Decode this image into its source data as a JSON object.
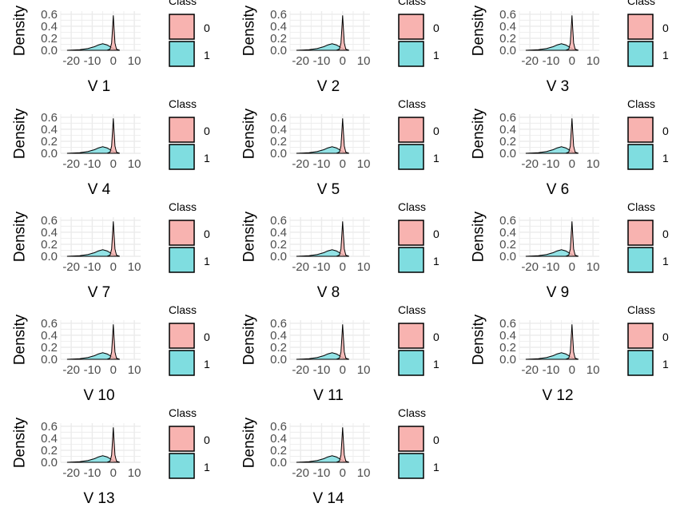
{
  "colors": {
    "class0": "#f8b3b0",
    "class1": "#7fdde0",
    "grid": "#ebebeb",
    "outline": "#000000",
    "tick": "#4d4d4d"
  },
  "axis": {
    "ylabel": "Density",
    "xticks": [
      "-20",
      "-10",
      "0",
      "10"
    ],
    "yticks": [
      "0.0",
      "0.2",
      "0.4",
      "0.6"
    ]
  },
  "legend": {
    "title": "Class",
    "labels": [
      "0",
      "1"
    ]
  },
  "chart_data": [
    {
      "type": "area",
      "xlabel": "V 1",
      "ylabel": "Density",
      "xlim": [
        -25,
        13
      ],
      "ylim": [
        0,
        0.65
      ],
      "legend": "right",
      "series": [
        {
          "name": "0",
          "x": [
            -3,
            -1.5,
            -0.8,
            -0.3,
            0,
            0.3,
            0.8,
            1.5,
            3
          ],
          "y": [
            0,
            0.02,
            0.12,
            0.4,
            0.58,
            0.4,
            0.12,
            0.02,
            0
          ]
        },
        {
          "name": "1",
          "x": [
            -22,
            -16,
            -12,
            -9,
            -7,
            -5,
            -3,
            -1,
            1,
            3
          ],
          "y": [
            0,
            0.01,
            0.03,
            0.06,
            0.09,
            0.11,
            0.09,
            0.05,
            0.01,
            0
          ]
        }
      ]
    },
    {
      "type": "area",
      "xlabel": "V 2",
      "ylabel": "Density",
      "xlim": [
        -25,
        13
      ],
      "ylim": [
        0,
        0.65
      ],
      "legend": "right",
      "series": [
        {
          "name": "0",
          "x": [
            -3,
            -1.5,
            -0.8,
            -0.3,
            0,
            0.3,
            0.8,
            1.5,
            3
          ],
          "y": [
            0,
            0.02,
            0.12,
            0.4,
            0.58,
            0.4,
            0.12,
            0.02,
            0
          ]
        },
        {
          "name": "1",
          "x": [
            -22,
            -16,
            -12,
            -9,
            -7,
            -5,
            -3,
            -1,
            1,
            3
          ],
          "y": [
            0,
            0.01,
            0.03,
            0.06,
            0.09,
            0.11,
            0.09,
            0.05,
            0.01,
            0
          ]
        }
      ]
    },
    {
      "type": "area",
      "xlabel": "V 3",
      "ylabel": "Density",
      "xlim": [
        -25,
        13
      ],
      "ylim": [
        0,
        0.65
      ],
      "legend": "right",
      "series": [
        {
          "name": "0",
          "x": [
            -3,
            -1.5,
            -0.8,
            -0.3,
            0,
            0.3,
            0.8,
            1.5,
            3
          ],
          "y": [
            0,
            0.02,
            0.12,
            0.4,
            0.58,
            0.4,
            0.12,
            0.02,
            0
          ]
        },
        {
          "name": "1",
          "x": [
            -22,
            -16,
            -12,
            -9,
            -7,
            -5,
            -3,
            -1,
            1,
            3
          ],
          "y": [
            0,
            0.01,
            0.03,
            0.06,
            0.09,
            0.11,
            0.09,
            0.05,
            0.01,
            0
          ]
        }
      ]
    },
    {
      "type": "area",
      "xlabel": "V 4",
      "ylabel": "Density",
      "xlim": [
        -25,
        13
      ],
      "ylim": [
        0,
        0.65
      ],
      "legend": "right",
      "series": [
        {
          "name": "0",
          "x": [
            -3,
            -1.5,
            -0.8,
            -0.3,
            0,
            0.3,
            0.8,
            1.5,
            3
          ],
          "y": [
            0,
            0.02,
            0.12,
            0.4,
            0.58,
            0.4,
            0.12,
            0.02,
            0
          ]
        },
        {
          "name": "1",
          "x": [
            -22,
            -16,
            -12,
            -9,
            -7,
            -5,
            -3,
            -1,
            1,
            3
          ],
          "y": [
            0,
            0.01,
            0.03,
            0.06,
            0.09,
            0.11,
            0.09,
            0.05,
            0.01,
            0
          ]
        }
      ]
    },
    {
      "type": "area",
      "xlabel": "V 5",
      "ylabel": "Density",
      "xlim": [
        -25,
        13
      ],
      "ylim": [
        0,
        0.65
      ],
      "legend": "right",
      "series": [
        {
          "name": "0",
          "x": [
            -3,
            -1.5,
            -0.8,
            -0.3,
            0,
            0.3,
            0.8,
            1.5,
            3
          ],
          "y": [
            0,
            0.02,
            0.12,
            0.4,
            0.58,
            0.4,
            0.12,
            0.02,
            0
          ]
        },
        {
          "name": "1",
          "x": [
            -22,
            -16,
            -12,
            -9,
            -7,
            -5,
            -3,
            -1,
            1,
            3
          ],
          "y": [
            0,
            0.01,
            0.03,
            0.06,
            0.09,
            0.11,
            0.09,
            0.05,
            0.01,
            0
          ]
        }
      ]
    },
    {
      "type": "area",
      "xlabel": "V 6",
      "ylabel": "Density",
      "xlim": [
        -25,
        13
      ],
      "ylim": [
        0,
        0.65
      ],
      "legend": "right",
      "series": [
        {
          "name": "0",
          "x": [
            -3,
            -1.5,
            -0.8,
            -0.3,
            0,
            0.3,
            0.8,
            1.5,
            3
          ],
          "y": [
            0,
            0.02,
            0.12,
            0.4,
            0.58,
            0.4,
            0.12,
            0.02,
            0
          ]
        },
        {
          "name": "1",
          "x": [
            -22,
            -16,
            -12,
            -9,
            -7,
            -5,
            -3,
            -1,
            1,
            3
          ],
          "y": [
            0,
            0.01,
            0.03,
            0.06,
            0.09,
            0.11,
            0.09,
            0.05,
            0.01,
            0
          ]
        }
      ]
    },
    {
      "type": "area",
      "xlabel": "V 7",
      "ylabel": "Density",
      "xlim": [
        -25,
        13
      ],
      "ylim": [
        0,
        0.65
      ],
      "legend": "right",
      "series": [
        {
          "name": "0",
          "x": [
            -3,
            -1.5,
            -0.8,
            -0.3,
            0,
            0.3,
            0.8,
            1.5,
            3
          ],
          "y": [
            0,
            0.02,
            0.12,
            0.4,
            0.58,
            0.4,
            0.12,
            0.02,
            0
          ]
        },
        {
          "name": "1",
          "x": [
            -22,
            -16,
            -12,
            -9,
            -7,
            -5,
            -3,
            -1,
            1,
            3
          ],
          "y": [
            0,
            0.01,
            0.03,
            0.06,
            0.09,
            0.11,
            0.09,
            0.05,
            0.01,
            0
          ]
        }
      ]
    },
    {
      "type": "area",
      "xlabel": "V 8",
      "ylabel": "Density",
      "xlim": [
        -25,
        13
      ],
      "ylim": [
        0,
        0.65
      ],
      "legend": "right",
      "series": [
        {
          "name": "0",
          "x": [
            -3,
            -1.5,
            -0.8,
            -0.3,
            0,
            0.3,
            0.8,
            1.5,
            3
          ],
          "y": [
            0,
            0.02,
            0.12,
            0.4,
            0.58,
            0.4,
            0.12,
            0.02,
            0
          ]
        },
        {
          "name": "1",
          "x": [
            -22,
            -16,
            -12,
            -9,
            -7,
            -5,
            -3,
            -1,
            1,
            3
          ],
          "y": [
            0,
            0.01,
            0.03,
            0.06,
            0.09,
            0.11,
            0.09,
            0.05,
            0.01,
            0
          ]
        }
      ]
    },
    {
      "type": "area",
      "xlabel": "V 9",
      "ylabel": "Density",
      "xlim": [
        -25,
        13
      ],
      "ylim": [
        0,
        0.65
      ],
      "legend": "right",
      "series": [
        {
          "name": "0",
          "x": [
            -3,
            -1.5,
            -0.8,
            -0.3,
            0,
            0.3,
            0.8,
            1.5,
            3
          ],
          "y": [
            0,
            0.02,
            0.12,
            0.4,
            0.58,
            0.4,
            0.12,
            0.02,
            0
          ]
        },
        {
          "name": "1",
          "x": [
            -22,
            -16,
            -12,
            -9,
            -7,
            -5,
            -3,
            -1,
            1,
            3
          ],
          "y": [
            0,
            0.01,
            0.03,
            0.06,
            0.09,
            0.11,
            0.09,
            0.05,
            0.01,
            0
          ]
        }
      ]
    },
    {
      "type": "area",
      "xlabel": "V 10",
      "ylabel": "Density",
      "xlim": [
        -25,
        13
      ],
      "ylim": [
        0,
        0.65
      ],
      "legend": "right",
      "series": [
        {
          "name": "0",
          "x": [
            -3,
            -1.5,
            -0.8,
            -0.3,
            0,
            0.3,
            0.8,
            1.5,
            3
          ],
          "y": [
            0,
            0.02,
            0.12,
            0.4,
            0.58,
            0.4,
            0.12,
            0.02,
            0
          ]
        },
        {
          "name": "1",
          "x": [
            -22,
            -16,
            -12,
            -9,
            -7,
            -5,
            -3,
            -1,
            1,
            3
          ],
          "y": [
            0,
            0.01,
            0.03,
            0.06,
            0.09,
            0.11,
            0.09,
            0.05,
            0.01,
            0
          ]
        }
      ]
    },
    {
      "type": "area",
      "xlabel": "V 11",
      "ylabel": "Density",
      "xlim": [
        -25,
        13
      ],
      "ylim": [
        0,
        0.65
      ],
      "legend": "right",
      "series": [
        {
          "name": "0",
          "x": [
            -3,
            -1.5,
            -0.8,
            -0.3,
            0,
            0.3,
            0.8,
            1.5,
            3
          ],
          "y": [
            0,
            0.02,
            0.12,
            0.4,
            0.58,
            0.4,
            0.12,
            0.02,
            0
          ]
        },
        {
          "name": "1",
          "x": [
            -22,
            -16,
            -12,
            -9,
            -7,
            -5,
            -3,
            -1,
            1,
            3
          ],
          "y": [
            0,
            0.01,
            0.03,
            0.06,
            0.09,
            0.11,
            0.09,
            0.05,
            0.01,
            0
          ]
        }
      ]
    },
    {
      "type": "area",
      "xlabel": "V 12",
      "ylabel": "Density",
      "xlim": [
        -25,
        13
      ],
      "ylim": [
        0,
        0.65
      ],
      "legend": "right",
      "series": [
        {
          "name": "0",
          "x": [
            -3,
            -1.5,
            -0.8,
            -0.3,
            0,
            0.3,
            0.8,
            1.5,
            3
          ],
          "y": [
            0,
            0.02,
            0.12,
            0.4,
            0.58,
            0.4,
            0.12,
            0.02,
            0
          ]
        },
        {
          "name": "1",
          "x": [
            -22,
            -16,
            -12,
            -9,
            -7,
            -5,
            -3,
            -1,
            1,
            3
          ],
          "y": [
            0,
            0.01,
            0.03,
            0.06,
            0.09,
            0.11,
            0.09,
            0.05,
            0.01,
            0
          ]
        }
      ]
    },
    {
      "type": "area",
      "xlabel": "V 13",
      "ylabel": "Density",
      "xlim": [
        -25,
        13
      ],
      "ylim": [
        0,
        0.65
      ],
      "legend": "right",
      "series": [
        {
          "name": "0",
          "x": [
            -3,
            -1.5,
            -0.8,
            -0.3,
            0,
            0.3,
            0.8,
            1.5,
            3
          ],
          "y": [
            0,
            0.02,
            0.12,
            0.4,
            0.58,
            0.4,
            0.12,
            0.02,
            0
          ]
        },
        {
          "name": "1",
          "x": [
            -22,
            -16,
            -12,
            -9,
            -7,
            -5,
            -3,
            -1,
            1,
            3
          ],
          "y": [
            0,
            0.01,
            0.03,
            0.06,
            0.09,
            0.11,
            0.09,
            0.05,
            0.01,
            0
          ]
        }
      ]
    },
    {
      "type": "area",
      "xlabel": "V 14",
      "ylabel": "Density",
      "xlim": [
        -25,
        13
      ],
      "ylim": [
        0,
        0.65
      ],
      "legend": "right",
      "series": [
        {
          "name": "0",
          "x": [
            -3,
            -1.5,
            -0.8,
            -0.3,
            0,
            0.3,
            0.8,
            1.5,
            3
          ],
          "y": [
            0,
            0.02,
            0.12,
            0.4,
            0.58,
            0.4,
            0.12,
            0.02,
            0
          ]
        },
        {
          "name": "1",
          "x": [
            -22,
            -16,
            -12,
            -9,
            -7,
            -5,
            -3,
            -1,
            1,
            3
          ],
          "y": [
            0,
            0.01,
            0.03,
            0.06,
            0.09,
            0.11,
            0.09,
            0.05,
            0.01,
            0
          ]
        }
      ]
    }
  ]
}
